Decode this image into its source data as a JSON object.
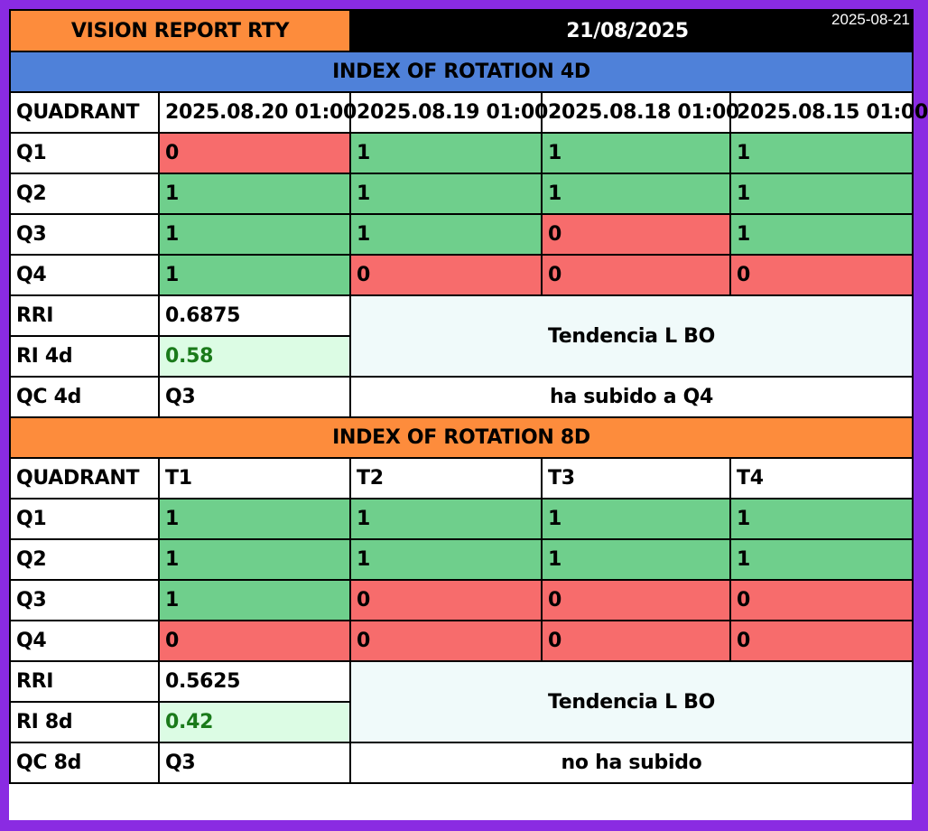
{
  "stamp_date": "2025-08-21",
  "report": {
    "title": "VISION REPORT RTY",
    "date": "21/08/2025"
  },
  "section_4d": {
    "title": "INDEX OF ROTATION 4D",
    "header": [
      "QUADRANT",
      "2025.08.20 01:00",
      "2025.08.19 01:00",
      "2025.08.18 01:00",
      "2025.08.15 01:00"
    ],
    "rows": [
      {
        "label": "Q1",
        "values": [
          "0",
          "1",
          "1",
          "1"
        ]
      },
      {
        "label": "Q2",
        "values": [
          "1",
          "1",
          "1",
          "1"
        ]
      },
      {
        "label": "Q3",
        "values": [
          "1",
          "1",
          "0",
          "1"
        ]
      },
      {
        "label": "Q4",
        "values": [
          "1",
          "0",
          "0",
          "0"
        ]
      }
    ],
    "rri_label": "RRI",
    "rri_value": "0.6875",
    "ri_label": "RI 4d",
    "ri_value": "0.58",
    "trend": "Tendencia L BO",
    "qc_label": "QC 4d",
    "qc_value": "Q3",
    "qc_note": "ha subido a Q4"
  },
  "section_8d": {
    "title": "INDEX OF ROTATION 8D",
    "header": [
      "QUADRANT",
      "T1",
      "T2",
      "T3",
      "T4"
    ],
    "rows": [
      {
        "label": "Q1",
        "values": [
          "1",
          "1",
          "1",
          "1"
        ]
      },
      {
        "label": "Q2",
        "values": [
          "1",
          "1",
          "1",
          "1"
        ]
      },
      {
        "label": "Q3",
        "values": [
          "1",
          "0",
          "0",
          "0"
        ]
      },
      {
        "label": "Q4",
        "values": [
          "0",
          "0",
          "0",
          "0"
        ]
      }
    ],
    "rri_label": "RRI",
    "rri_value": "0.5625",
    "ri_label": "RI 8d",
    "ri_value": "0.42",
    "trend": "Tendencia L BO",
    "qc_label": "QC 8d",
    "qc_value": "Q3",
    "qc_note": "no ha subido"
  },
  "colors": {
    "positive": "#6fcf8c",
    "negative": "#f76c6c",
    "header_orange": "#fd8c3c",
    "header_blue": "#4f81d9",
    "frame": "#8a2be2"
  }
}
